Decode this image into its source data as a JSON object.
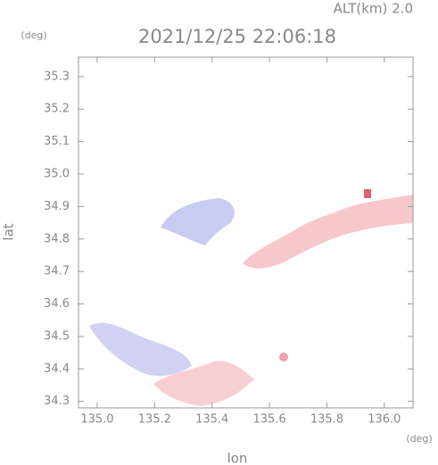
{
  "chart_data": {
    "type": "map",
    "title": "2021/12/25 22:06:18",
    "annotation": "ALT(km)  2.0",
    "y_unit": "(deg)",
    "x_unit": "(deg)",
    "xlabel": "lon",
    "ylabel": "lat",
    "xlim": [
      134.935,
      136.1
    ],
    "ylim": [
      34.28,
      35.36
    ],
    "xticks": [
      {
        "value": 135,
        "label": "135.0"
      },
      135.2,
      135.4,
      135.6,
      135.8,
      {
        "value": 136,
        "label": "136.0"
      }
    ],
    "yticks": [
      34.3,
      34.4,
      34.5,
      34.6,
      34.7,
      34.8,
      34.9,
      {
        "value": 35,
        "label": "35.0"
      },
      35.1,
      35.2,
      35.3
    ]
  }
}
